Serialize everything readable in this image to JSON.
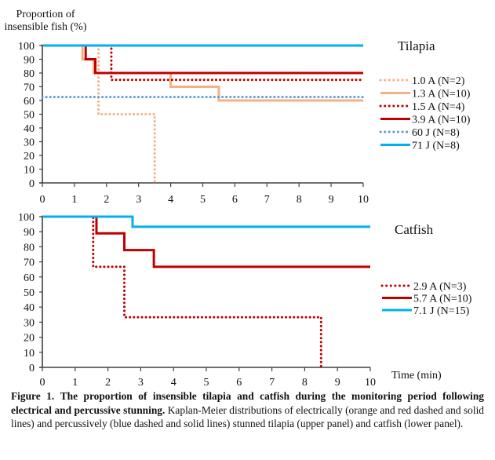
{
  "chart_data": [
    {
      "type": "line",
      "subtype": "kaplan-meier-step",
      "panel_label": "Tilapia",
      "ylabel": "Proportion of insensible fish (%)",
      "ylabel_lines": [
        "Proportion of",
        "insensible fish (%)"
      ],
      "xlabel": "",
      "xlim": [
        0,
        10
      ],
      "ylim": [
        0,
        100
      ],
      "xticks": [
        0,
        1,
        2,
        3,
        4,
        5,
        6,
        7,
        8,
        9,
        10
      ],
      "yticks": [
        0,
        10,
        20,
        30,
        40,
        50,
        60,
        70,
        80,
        90,
        100
      ],
      "grid": false,
      "legend_position": "right",
      "series": [
        {
          "name": "1.0 A (N=2)",
          "color": "#F4B183",
          "style": "dotted",
          "steps": [
            [
              0,
              100
            ],
            [
              1.75,
              50
            ],
            [
              3.5,
              0
            ]
          ],
          "end_x": 3.5
        },
        {
          "name": "1.3 A (N=10)",
          "color": "#F4B183",
          "style": "solid",
          "steps": [
            [
              0,
              100
            ],
            [
              1.25,
              90
            ],
            [
              1.6,
              80
            ],
            [
              4.0,
              70
            ],
            [
              5.5,
              60
            ]
          ],
          "end_x": 10
        },
        {
          "name": "1.5 A (N=4)",
          "color": "#C00000",
          "style": "dotted",
          "steps": [
            [
              0,
              100
            ],
            [
              2.15,
              75
            ]
          ],
          "end_x": 10
        },
        {
          "name": "3.9 A (N=10)",
          "color": "#C00000",
          "style": "solid",
          "steps": [
            [
              0,
              100
            ],
            [
              1.35,
              90
            ],
            [
              1.65,
              80
            ]
          ],
          "end_x": 10
        },
        {
          "name": "60 J (N=8)",
          "color": "#5B9BD5",
          "style": "dotted",
          "steps": [
            [
              0,
              62.5
            ]
          ],
          "end_x": 10
        },
        {
          "name": "71 J (N=8)",
          "color": "#00B0F0",
          "style": "solid",
          "steps": [
            [
              0,
              100
            ]
          ],
          "end_x": 10
        }
      ]
    },
    {
      "type": "line",
      "subtype": "kaplan-meier-step",
      "panel_label": "Catfish",
      "ylabel": "",
      "xlabel": "Time (min)",
      "xlim": [
        0,
        10
      ],
      "ylim": [
        0,
        100
      ],
      "xticks": [
        0,
        1,
        2,
        3,
        4,
        5,
        6,
        7,
        8,
        9,
        10
      ],
      "yticks": [
        0,
        10,
        20,
        30,
        40,
        50,
        60,
        70,
        80,
        90,
        100
      ],
      "grid": false,
      "legend_position": "right",
      "series": [
        {
          "name": "2.9 A (N=3)",
          "color": "#C00000",
          "style": "dotted",
          "steps": [
            [
              0,
              100
            ],
            [
              1.55,
              66.7
            ],
            [
              2.5,
              33.3
            ],
            [
              8.5,
              0
            ]
          ],
          "end_x": 8.5
        },
        {
          "name": "5.7 A (N=10)",
          "color": "#C00000",
          "style": "solid",
          "steps": [
            [
              0,
              100
            ],
            [
              1.65,
              88.9
            ],
            [
              2.5,
              77.8
            ],
            [
              3.4,
              66.7
            ]
          ],
          "end_x": 10
        },
        {
          "name": "7.1 J (N=15)",
          "color": "#00B0F0",
          "style": "solid",
          "steps": [
            [
              0,
              100
            ],
            [
              2.75,
              93.3
            ]
          ],
          "end_x": 10
        }
      ]
    }
  ],
  "caption": {
    "label": "Figure 1.",
    "bold_title": "The proportion of insensible tilapia and catfish during the monitoring period following electrical and percussive stunning.",
    "body": "Kaplan-Meier distributions of electrically (orange and red dashed and solid lines) and percussively (blue dashed and solid lines) stunned tilapia (upper panel) and catfish (lower panel)."
  }
}
